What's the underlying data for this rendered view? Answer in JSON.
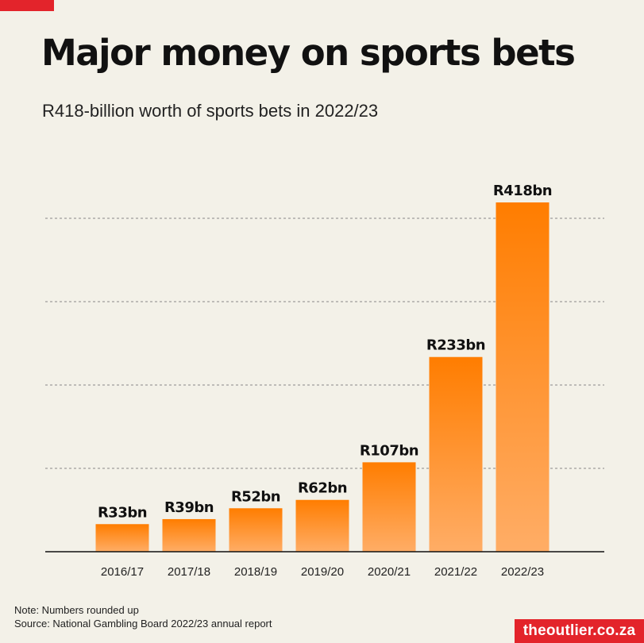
{
  "title": "Major money on sports bets",
  "subtitle": "R418-billion worth of sports bets in 2022/23",
  "note": "Note: Numbers rounded up",
  "source": "Source: National Gambling Board 2022/23 annual report",
  "brand": "theoutlier.co.za",
  "colors": {
    "background": "#f3f1e8",
    "bar_top": "#ff7d00",
    "bar_bottom": "#ffad66",
    "accent_red": "#e3242b",
    "grid": "#888888"
  },
  "chart_data": {
    "type": "bar",
    "title": "Major money on sports bets",
    "subtitle": "R418-billion worth of sports bets in 2022/23",
    "categories": [
      "2016/17",
      "2017/18",
      "2018/19",
      "2019/20",
      "2020/21",
      "2021/22",
      "2022/23"
    ],
    "values": [
      33,
      39,
      52,
      62,
      107,
      233,
      418
    ],
    "data_labels": [
      "R33bn",
      "R39bn",
      "R52bn",
      "R62bn",
      "R107bn",
      "R233bn",
      "R418bn"
    ],
    "unit": "R billion",
    "ylim": [
      0,
      420
    ],
    "gridlines": [
      80,
      160,
      240,
      320
    ],
    "grid": true,
    "legend": "none",
    "xlabel": "",
    "ylabel": ""
  }
}
